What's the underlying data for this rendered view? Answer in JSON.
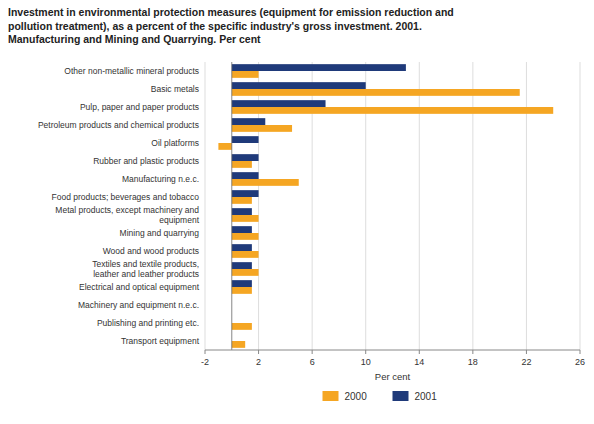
{
  "chart_data": {
    "type": "bar",
    "orientation": "horizontal",
    "title": "Investment in environmental protection measures (equipment for emission reduction and\npollution treatment), as a percent of the specific industry's gross investment.  2001.\nManufacturing and Mining and Quarrying. Per cent",
    "categories": [
      "Other non-metallic mineral products",
      "Basic metals",
      "Pulp, paper and paper products",
      "Petroleum products and chemical products",
      "Oil platforms",
      "Rubber and plastic products",
      "Manufacturing n.e.c.",
      "Food products; beverages and tobacco",
      "Metal products, except machinery and\nequipment",
      "Mining and quarrying",
      "Wood and wood products",
      "Textiles and textile products,\nleather and leather products",
      "Electrical and optical equipment",
      "Machinery and equipment n.e.c.",
      "Publishing and printing etc.",
      "Transport equipment"
    ],
    "series": [
      {
        "name": "2000",
        "color": "#f5a623",
        "values": [
          2.0,
          21.5,
          24.0,
          4.5,
          -1.0,
          1.5,
          5.0,
          1.5,
          2.0,
          2.0,
          2.0,
          2.0,
          1.5,
          0.0,
          1.5,
          1.0
        ]
      },
      {
        "name": "2001",
        "color": "#1f3a7a",
        "values": [
          13.0,
          10.0,
          7.0,
          2.5,
          2.0,
          2.0,
          2.0,
          2.0,
          1.5,
          1.5,
          1.5,
          1.5,
          1.5,
          0.0,
          0.0,
          0.0
        ]
      }
    ],
    "xlabel": "Per cent",
    "xlim": [
      -2,
      26
    ],
    "xticks": [
      -2,
      2,
      6,
      10,
      14,
      18,
      22,
      26
    ],
    "grid": true,
    "legend": "bottom"
  }
}
